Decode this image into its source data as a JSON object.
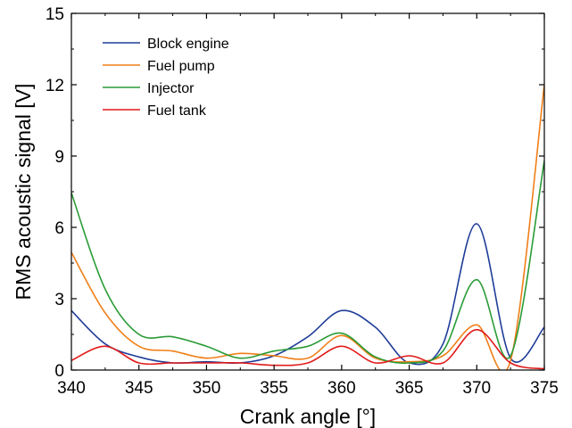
{
  "chart_data": {
    "type": "line",
    "title": "",
    "xlabel": "Crank angle [°]",
    "ylabel": "RMS acoustic signal [V]",
    "xlim": [
      340,
      375
    ],
    "ylim": [
      0,
      15
    ],
    "x_ticks": [
      340,
      345,
      350,
      355,
      360,
      365,
      370,
      375
    ],
    "y_ticks": [
      0,
      3,
      6,
      9,
      12,
      15
    ],
    "grid": false,
    "legend_position": "top-left",
    "series": [
      {
        "name": "Block engine",
        "color": "#1f3d99",
        "x": [
          340,
          342.5,
          345,
          347.5,
          350,
          352.5,
          355,
          357.5,
          360,
          362.5,
          365,
          367.5,
          370,
          372.5,
          375
        ],
        "y": [
          2.5,
          1.1,
          0.55,
          0.3,
          0.35,
          0.3,
          0.6,
          1.4,
          2.5,
          1.8,
          0.3,
          1.1,
          6.15,
          0.5,
          1.8
        ]
      },
      {
        "name": "Fuel pump",
        "color": "#f07f19",
        "x": [
          340,
          342.5,
          345,
          347.5,
          350,
          352.5,
          355,
          357.5,
          360,
          362.5,
          365,
          367.5,
          370,
          372.5,
          375
        ],
        "y": [
          4.95,
          2.4,
          1.0,
          0.8,
          0.5,
          0.7,
          0.6,
          0.5,
          1.45,
          0.5,
          0.35,
          0.6,
          1.9,
          0.4,
          12.0
        ]
      },
      {
        "name": "Injector",
        "color": "#2a9b36",
        "x": [
          340,
          342.5,
          345,
          347.5,
          350,
          352.5,
          355,
          357.5,
          360,
          362.5,
          365,
          367.5,
          370,
          372.5,
          375
        ],
        "y": [
          7.45,
          3.4,
          1.5,
          1.4,
          1.0,
          0.5,
          0.8,
          1.0,
          1.55,
          0.55,
          0.3,
          0.8,
          3.8,
          0.6,
          8.8
        ]
      },
      {
        "name": "Fuel tank",
        "color": "#e11a1a",
        "x": [
          340,
          342.5,
          345,
          347.5,
          350,
          352.5,
          355,
          357.5,
          360,
          362.5,
          365,
          367.5,
          370,
          372.5,
          375
        ],
        "y": [
          0.4,
          1.0,
          0.3,
          0.3,
          0.3,
          0.3,
          0.2,
          0.3,
          1.0,
          0.3,
          0.6,
          0.3,
          1.7,
          0.3,
          0.05
        ]
      }
    ]
  }
}
